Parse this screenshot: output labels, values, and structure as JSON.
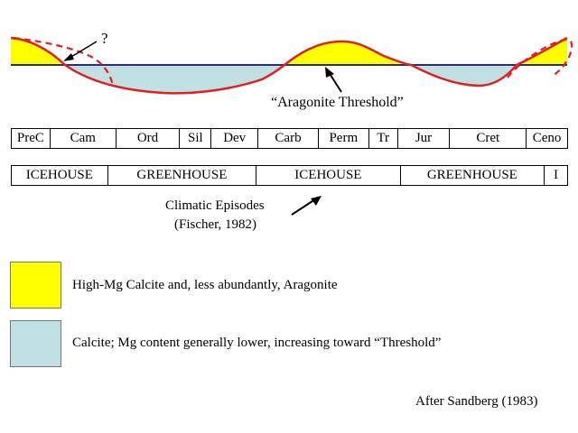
{
  "diagram": {
    "question_mark": "?",
    "aragonite_threshold_label": "“Aragonite Threshold”",
    "periods": [
      "PreC",
      "Cam",
      "Ord",
      "Sil",
      "Dev",
      "Carb",
      "Perm",
      "Tr",
      "Jur",
      "Cret",
      "Ceno"
    ],
    "episodes": [
      "ICEHOUSE",
      "GREENHOUSE",
      "ICEHOUSE",
      "GREENHOUSE",
      "I"
    ],
    "climatic_label_line1": "Climatic Episodes",
    "climatic_label_line2": "(Fischer, 1982)",
    "colors": {
      "aragonite": "#ffff00",
      "calcite": "#c0e0e4",
      "curve": "#e02020",
      "threshold": "#2a2a8a"
    }
  },
  "legend": [
    {
      "text": "High-Mg Calcite and, less abundantly, Aragonite",
      "color": "#ffff00"
    },
    {
      "text": "Calcite; Mg content generally lower, increasing toward “Threshold”",
      "color": "#c0e0e4"
    }
  ],
  "credit": "After Sandberg (1983)"
}
